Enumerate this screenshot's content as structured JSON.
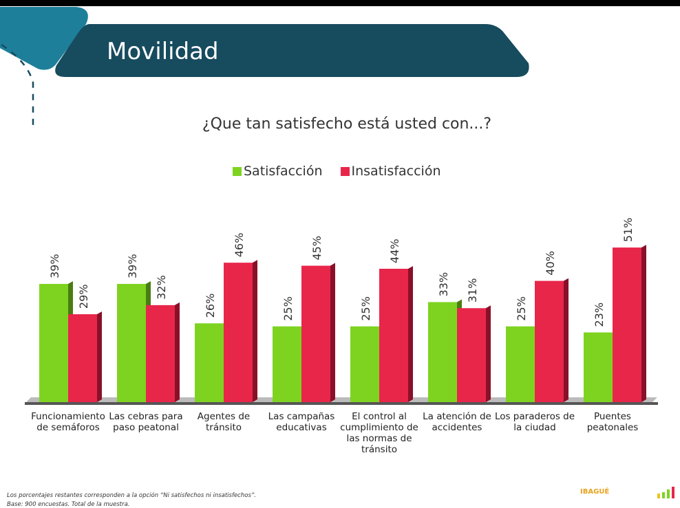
{
  "header": {
    "title": "Movilidad"
  },
  "question": "¿Que tan satisfecho está usted con...?",
  "chart_data": {
    "type": "bar",
    "title": "¿Que tan satisfecho está usted con...?",
    "categories": [
      "Funcionamiento de semáforos",
      "Las cebras para paso peatonal",
      "Agentes de tránsito",
      "Las campañas educativas",
      "El control al cumplimiento de las normas de tránsito",
      "La atención de accidentes",
      "Los paraderos de la ciudad",
      "Puentes peatonales"
    ],
    "series": [
      {
        "name": "Satisfacción",
        "color": "#7ed321",
        "values": [
          39,
          39,
          26,
          25,
          25,
          33,
          25,
          23
        ]
      },
      {
        "name": "Insatisfacción",
        "color": "#e8264a",
        "values": [
          29,
          32,
          46,
          45,
          44,
          31,
          40,
          51
        ]
      }
    ],
    "value_format": "{v}%",
    "ylim": [
      0,
      55
    ],
    "grid": false,
    "legend": "top"
  },
  "footer": {
    "note": "Los porcentajes restantes corresponden a la opción “Ni satisfechos ni insatisfechos”.",
    "base": "Base: 900 encuestas. Total de la muestra.",
    "logo_text": "IBAGUÉ"
  },
  "colors": {
    "header": "#174b5e",
    "accent": "#1e7f9a"
  }
}
